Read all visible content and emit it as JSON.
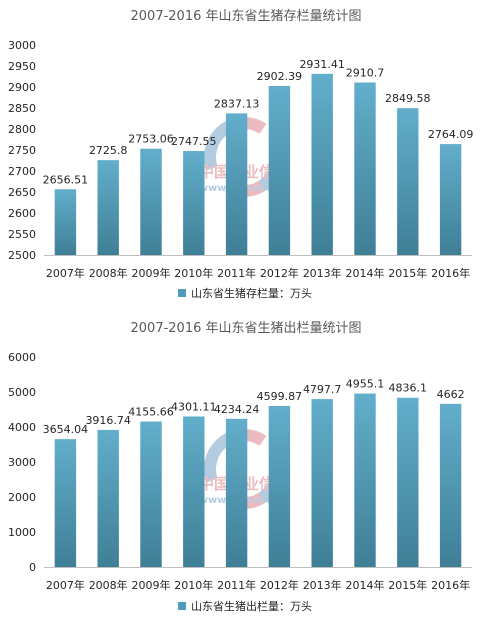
{
  "watermark": {
    "text_cn": "中国产业信息",
    "url": "www.chyxx.com"
  },
  "chart_data": [
    {
      "type": "bar",
      "title": "2007-2016 年山东省生猪存栏量统计图",
      "categories": [
        "2007年",
        "2008年",
        "2009年",
        "2010年",
        "2011年",
        "2012年",
        "2013年",
        "2014年",
        "2015年",
        "2016年"
      ],
      "series": [
        {
          "name": "山东省生猪存栏量：万头",
          "values": [
            2656.51,
            2725.8,
            2753.06,
            2747.55,
            2837.13,
            2902.39,
            2931.41,
            2910.7,
            2849.58,
            2764.09
          ],
          "labels": [
            "2656.51",
            "2725.8",
            "2753.06",
            "2747.55",
            "2837.13",
            "2902.39",
            "2931.41",
            "2910.7",
            "2849.58",
            "2764.09"
          ]
        }
      ],
      "ylim": [
        2500,
        3000
      ],
      "yticks": [
        "2500",
        "2550",
        "2600",
        "2650",
        "2700",
        "2750",
        "2800",
        "2850",
        "2900",
        "2950",
        "3000"
      ],
      "grid": false,
      "legend": "bottom",
      "bar_color": "#4f9cbd"
    },
    {
      "type": "bar",
      "title": "2007-2016 年山东省生猪出栏量统计图",
      "categories": [
        "2007年",
        "2008年",
        "2009年",
        "2010年",
        "2011年",
        "2012年",
        "2013年",
        "2014年",
        "2015年",
        "2016年"
      ],
      "series": [
        {
          "name": "山东省生猪出栏量：万头",
          "values": [
            3654.04,
            3916.74,
            4155.66,
            4301.11,
            4234.24,
            4599.87,
            4797.7,
            4955.1,
            4836.1,
            4662
          ],
          "labels": [
            "3654.04",
            "3916.74",
            "4155.66",
            "4301.11",
            "4234.24",
            "4599.87",
            "4797.7",
            "4955.1",
            "4836.1",
            "4662"
          ]
        }
      ],
      "ylim": [
        0,
        6000
      ],
      "yticks": [
        "0",
        "1000",
        "2000",
        "3000",
        "4000",
        "5000",
        "6000"
      ],
      "grid": false,
      "legend": "bottom",
      "bar_color": "#4f9cbd"
    }
  ]
}
